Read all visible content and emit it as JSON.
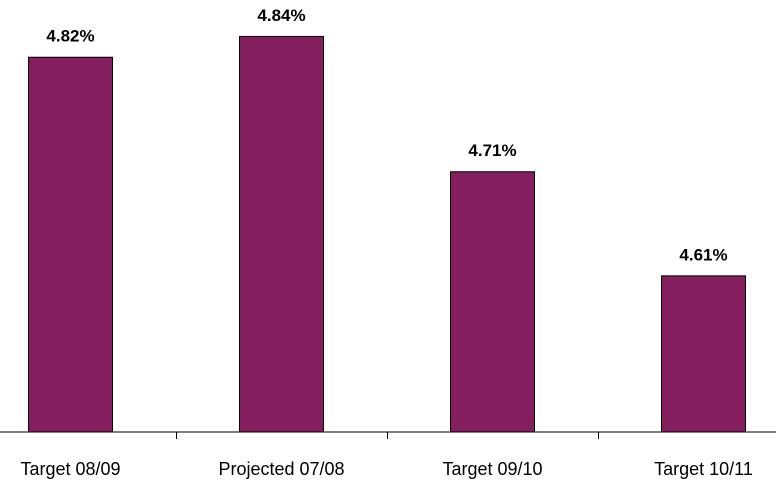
{
  "chart_data": {
    "type": "bar",
    "categories": [
      "Target 08/09",
      "Projected 07/08",
      "Target 09/10",
      "Target 10/11"
    ],
    "values": [
      4.82,
      4.84,
      4.71,
      4.61
    ],
    "value_labels": [
      "4.82%",
      "4.84%",
      "4.71%",
      "4.61%"
    ],
    "color": "#841e5e",
    "ylim": [
      4.46,
      4.875
    ]
  }
}
